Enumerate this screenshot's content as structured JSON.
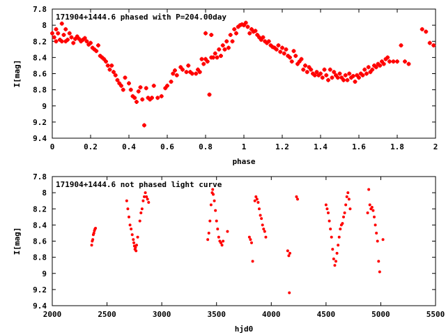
{
  "chart_data": [
    {
      "type": "scatter",
      "title": "171904+1444.6 phased with P=204.00day",
      "xlabel": "phase",
      "ylabel": "I[mag]",
      "xlim": [
        0,
        2
      ],
      "ylim": [
        9.4,
        7.8
      ],
      "y_inverted": true,
      "xticks": [
        "0",
        "0.2",
        "0.4",
        "0.6",
        "0.8",
        "1",
        "1.2",
        "1.4",
        "1.6",
        "1.8",
        "2"
      ],
      "yticks": [
        "7.8",
        "8",
        "8.2",
        "8.4",
        "8.6",
        "8.8",
        "9",
        "9.2",
        "9.4"
      ],
      "marker": "cross",
      "color": "#ff0000",
      "points": [
        [
          0.0,
          8.1
        ],
        [
          0.01,
          8.15
        ],
        [
          0.02,
          8.05
        ],
        [
          0.02,
          8.2
        ],
        [
          0.03,
          8.1
        ],
        [
          0.04,
          8.18
        ],
        [
          0.05,
          7.98
        ],
        [
          0.05,
          8.2
        ],
        [
          0.06,
          8.12
        ],
        [
          0.07,
          8.05
        ],
        [
          0.07,
          8.2
        ],
        [
          0.08,
          8.18
        ],
        [
          0.09,
          8.1
        ],
        [
          0.1,
          8.15
        ],
        [
          0.11,
          8.22
        ],
        [
          0.12,
          8.17
        ],
        [
          0.13,
          8.14
        ],
        [
          0.14,
          8.17
        ],
        [
          0.15,
          8.2
        ],
        [
          0.16,
          8.18
        ],
        [
          0.17,
          8.16
        ],
        [
          0.18,
          8.2
        ],
        [
          0.19,
          8.24
        ],
        [
          0.2,
          8.22
        ],
        [
          0.21,
          8.28
        ],
        [
          0.22,
          8.3
        ],
        [
          0.23,
          8.32
        ],
        [
          0.24,
          8.25
        ],
        [
          0.25,
          8.38
        ],
        [
          0.26,
          8.4
        ],
        [
          0.27,
          8.42
        ],
        [
          0.28,
          8.45
        ],
        [
          0.29,
          8.5
        ],
        [
          0.3,
          8.55
        ],
        [
          0.31,
          8.5
        ],
        [
          0.32,
          8.58
        ],
        [
          0.33,
          8.62
        ],
        [
          0.34,
          8.68
        ],
        [
          0.35,
          8.72
        ],
        [
          0.36,
          8.75
        ],
        [
          0.37,
          8.8
        ],
        [
          0.38,
          8.65
        ],
        [
          0.4,
          8.72
        ],
        [
          0.41,
          8.8
        ],
        [
          0.42,
          8.88
        ],
        [
          0.43,
          8.9
        ],
        [
          0.44,
          8.95
        ],
        [
          0.45,
          8.82
        ],
        [
          0.46,
          8.77
        ],
        [
          0.47,
          8.92
        ],
        [
          0.48,
          9.24
        ],
        [
          0.49,
          8.78
        ],
        [
          0.5,
          8.9
        ],
        [
          0.51,
          8.92
        ],
        [
          0.52,
          8.9
        ],
        [
          0.53,
          8.75
        ],
        [
          0.55,
          8.9
        ],
        [
          0.57,
          8.88
        ],
        [
          0.59,
          8.78
        ],
        [
          0.6,
          8.75
        ],
        [
          0.62,
          8.7
        ],
        [
          0.63,
          8.6
        ],
        [
          0.64,
          8.56
        ],
        [
          0.65,
          8.62
        ],
        [
          0.67,
          8.52
        ],
        [
          0.68,
          8.55
        ],
        [
          0.7,
          8.58
        ],
        [
          0.71,
          8.5
        ],
        [
          0.72,
          8.58
        ],
        [
          0.73,
          8.6
        ],
        [
          0.75,
          8.6
        ],
        [
          0.76,
          8.55
        ],
        [
          0.77,
          8.58
        ],
        [
          0.78,
          8.42
        ],
        [
          0.79,
          8.48
        ],
        [
          0.8,
          8.1
        ],
        [
          0.8,
          8.42
        ],
        [
          0.81,
          8.45
        ],
        [
          0.82,
          8.86
        ],
        [
          0.83,
          8.12
        ],
        [
          0.83,
          8.4
        ],
        [
          0.84,
          8.4
        ],
        [
          0.85,
          8.35
        ],
        [
          0.86,
          8.4
        ],
        [
          0.87,
          8.3
        ],
        [
          0.88,
          8.38
        ],
        [
          0.89,
          8.25
        ],
        [
          0.9,
          8.3
        ],
        [
          0.91,
          8.2
        ],
        [
          0.92,
          8.28
        ],
        [
          0.93,
          8.12
        ],
        [
          0.94,
          8.2
        ],
        [
          0.95,
          8.05
        ],
        [
          0.96,
          8.1
        ],
        [
          0.97,
          8.02
        ],
        [
          0.98,
          8.0
        ],
        [
          0.99,
          7.99
        ],
        [
          1.0,
          8.0
        ],
        [
          1.01,
          7.97
        ],
        [
          1.02,
          8.02
        ],
        [
          1.03,
          8.1
        ],
        [
          1.04,
          8.05
        ],
        [
          1.05,
          8.08
        ],
        [
          1.06,
          8.07
        ],
        [
          1.07,
          8.12
        ],
        [
          1.08,
          8.15
        ],
        [
          1.09,
          8.18
        ],
        [
          1.1,
          8.15
        ],
        [
          1.11,
          8.2
        ],
        [
          1.12,
          8.22
        ],
        [
          1.13,
          8.2
        ],
        [
          1.14,
          8.25
        ],
        [
          1.15,
          8.27
        ],
        [
          1.16,
          8.28
        ],
        [
          1.17,
          8.3
        ],
        [
          1.18,
          8.25
        ],
        [
          1.19,
          8.33
        ],
        [
          1.2,
          8.28
        ],
        [
          1.21,
          8.35
        ],
        [
          1.22,
          8.3
        ],
        [
          1.23,
          8.38
        ],
        [
          1.24,
          8.4
        ],
        [
          1.25,
          8.45
        ],
        [
          1.26,
          8.32
        ],
        [
          1.27,
          8.38
        ],
        [
          1.28,
          8.48
        ],
        [
          1.29,
          8.45
        ],
        [
          1.3,
          8.42
        ],
        [
          1.31,
          8.55
        ],
        [
          1.32,
          8.5
        ],
        [
          1.33,
          8.58
        ],
        [
          1.34,
          8.52
        ],
        [
          1.35,
          8.55
        ],
        [
          1.36,
          8.6
        ],
        [
          1.37,
          8.62
        ],
        [
          1.38,
          8.58
        ],
        [
          1.39,
          8.62
        ],
        [
          1.4,
          8.6
        ],
        [
          1.41,
          8.65
        ],
        [
          1.42,
          8.55
        ],
        [
          1.43,
          8.62
        ],
        [
          1.44,
          8.68
        ],
        [
          1.45,
          8.55
        ],
        [
          1.46,
          8.65
        ],
        [
          1.47,
          8.58
        ],
        [
          1.48,
          8.62
        ],
        [
          1.49,
          8.65
        ],
        [
          1.5,
          8.6
        ],
        [
          1.51,
          8.65
        ],
        [
          1.52,
          8.68
        ],
        [
          1.53,
          8.62
        ],
        [
          1.54,
          8.68
        ],
        [
          1.55,
          8.6
        ],
        [
          1.56,
          8.65
        ],
        [
          1.57,
          8.63
        ],
        [
          1.58,
          8.7
        ],
        [
          1.59,
          8.62
        ],
        [
          1.6,
          8.65
        ],
        [
          1.61,
          8.6
        ],
        [
          1.62,
          8.62
        ],
        [
          1.63,
          8.55
        ],
        [
          1.64,
          8.6
        ],
        [
          1.65,
          8.52
        ],
        [
          1.66,
          8.58
        ],
        [
          1.67,
          8.55
        ],
        [
          1.68,
          8.5
        ],
        [
          1.69,
          8.52
        ],
        [
          1.7,
          8.48
        ],
        [
          1.71,
          8.5
        ],
        [
          1.72,
          8.45
        ],
        [
          1.73,
          8.48
        ],
        [
          1.74,
          8.42
        ],
        [
          1.75,
          8.4
        ],
        [
          1.76,
          8.45
        ],
        [
          1.78,
          8.45
        ],
        [
          1.8,
          8.45
        ],
        [
          1.82,
          8.25
        ],
        [
          1.84,
          8.45
        ],
        [
          1.86,
          8.48
        ],
        [
          1.93,
          8.05
        ],
        [
          1.95,
          8.08
        ],
        [
          1.97,
          8.22
        ],
        [
          1.99,
          8.25
        ]
      ]
    },
    {
      "type": "scatter",
      "title": "171904+1444.6 not phased light curve",
      "xlabel": "hjd0",
      "ylabel": "I[mag]",
      "xlim": [
        2000,
        5500
      ],
      "ylim": [
        9.4,
        7.8
      ],
      "y_inverted": true,
      "xticks": [
        "2000",
        "2500",
        "3000",
        "3500",
        "4000",
        "4500",
        "5000",
        "5500"
      ],
      "yticks": [
        "7.8",
        "8",
        "8.2",
        "8.4",
        "8.6",
        "8.8",
        "9",
        "9.2",
        "9.4"
      ],
      "marker": "dot",
      "color": "#ff0000",
      "points": [
        [
          2360,
          8.65
        ],
        [
          2365,
          8.6
        ],
        [
          2370,
          8.58
        ],
        [
          2375,
          8.52
        ],
        [
          2380,
          8.5
        ],
        [
          2385,
          8.47
        ],
        [
          2390,
          8.45
        ],
        [
          2395,
          8.44
        ],
        [
          2680,
          8.1
        ],
        [
          2690,
          8.2
        ],
        [
          2700,
          8.3
        ],
        [
          2710,
          8.4
        ],
        [
          2720,
          8.45
        ],
        [
          2730,
          8.52
        ],
        [
          2740,
          8.58
        ],
        [
          2745,
          8.62
        ],
        [
          2750,
          8.66
        ],
        [
          2755,
          8.7
        ],
        [
          2760,
          8.68
        ],
        [
          2765,
          8.72
        ],
        [
          2770,
          8.65
        ],
        [
          2780,
          8.55
        ],
        [
          2800,
          8.35
        ],
        [
          2810,
          8.25
        ],
        [
          2820,
          8.2
        ],
        [
          2830,
          8.1
        ],
        [
          2840,
          8.05
        ],
        [
          2850,
          8.0
        ],
        [
          2860,
          8.05
        ],
        [
          2870,
          8.08
        ],
        [
          2880,
          8.12
        ],
        [
          3420,
          8.58
        ],
        [
          3430,
          8.5
        ],
        [
          3440,
          8.35
        ],
        [
          3450,
          8.15
        ],
        [
          3460,
          8.0
        ],
        [
          3465,
          7.96
        ],
        [
          3470,
          8.02
        ],
        [
          3480,
          8.1
        ],
        [
          3490,
          8.22
        ],
        [
          3500,
          8.35
        ],
        [
          3510,
          8.45
        ],
        [
          3520,
          8.55
        ],
        [
          3530,
          8.6
        ],
        [
          3540,
          8.62
        ],
        [
          3550,
          8.65
        ],
        [
          3560,
          8.6
        ],
        [
          3600,
          8.48
        ],
        [
          3800,
          8.55
        ],
        [
          3810,
          8.58
        ],
        [
          3820,
          8.62
        ],
        [
          3830,
          8.85
        ],
        [
          3850,
          8.1
        ],
        [
          3860,
          8.05
        ],
        [
          3870,
          8.08
        ],
        [
          3880,
          8.12
        ],
        [
          3890,
          8.2
        ],
        [
          3900,
          8.28
        ],
        [
          3910,
          8.32
        ],
        [
          3920,
          8.4
        ],
        [
          3930,
          8.45
        ],
        [
          3940,
          8.48
        ],
        [
          3950,
          8.55
        ],
        [
          4150,
          8.72
        ],
        [
          4160,
          8.78
        ],
        [
          4165,
          9.24
        ],
        [
          4170,
          8.75
        ],
        [
          4230,
          8.05
        ],
        [
          4240,
          8.08
        ],
        [
          4500,
          8.15
        ],
        [
          4510,
          8.2
        ],
        [
          4520,
          8.25
        ],
        [
          4530,
          8.35
        ],
        [
          4540,
          8.45
        ],
        [
          4550,
          8.55
        ],
        [
          4560,
          8.7
        ],
        [
          4570,
          8.82
        ],
        [
          4580,
          8.9
        ],
        [
          4590,
          8.85
        ],
        [
          4600,
          8.75
        ],
        [
          4610,
          8.65
        ],
        [
          4620,
          8.55
        ],
        [
          4630,
          8.45
        ],
        [
          4640,
          8.4
        ],
        [
          4650,
          8.38
        ],
        [
          4660,
          8.3
        ],
        [
          4670,
          8.25
        ],
        [
          4680,
          8.15
        ],
        [
          4690,
          8.05
        ],
        [
          4700,
          8.0
        ],
        [
          4710,
          8.08
        ],
        [
          4720,
          8.2
        ],
        [
          4880,
          8.25
        ],
        [
          4890,
          7.96
        ],
        [
          4900,
          8.15
        ],
        [
          4910,
          8.2
        ],
        [
          4920,
          8.18
        ],
        [
          4930,
          8.22
        ],
        [
          4940,
          8.3
        ],
        [
          4950,
          8.4
        ],
        [
          4960,
          8.5
        ],
        [
          4970,
          8.6
        ],
        [
          4980,
          8.85
        ],
        [
          4990,
          8.98
        ],
        [
          5020,
          8.58
        ]
      ]
    }
  ]
}
